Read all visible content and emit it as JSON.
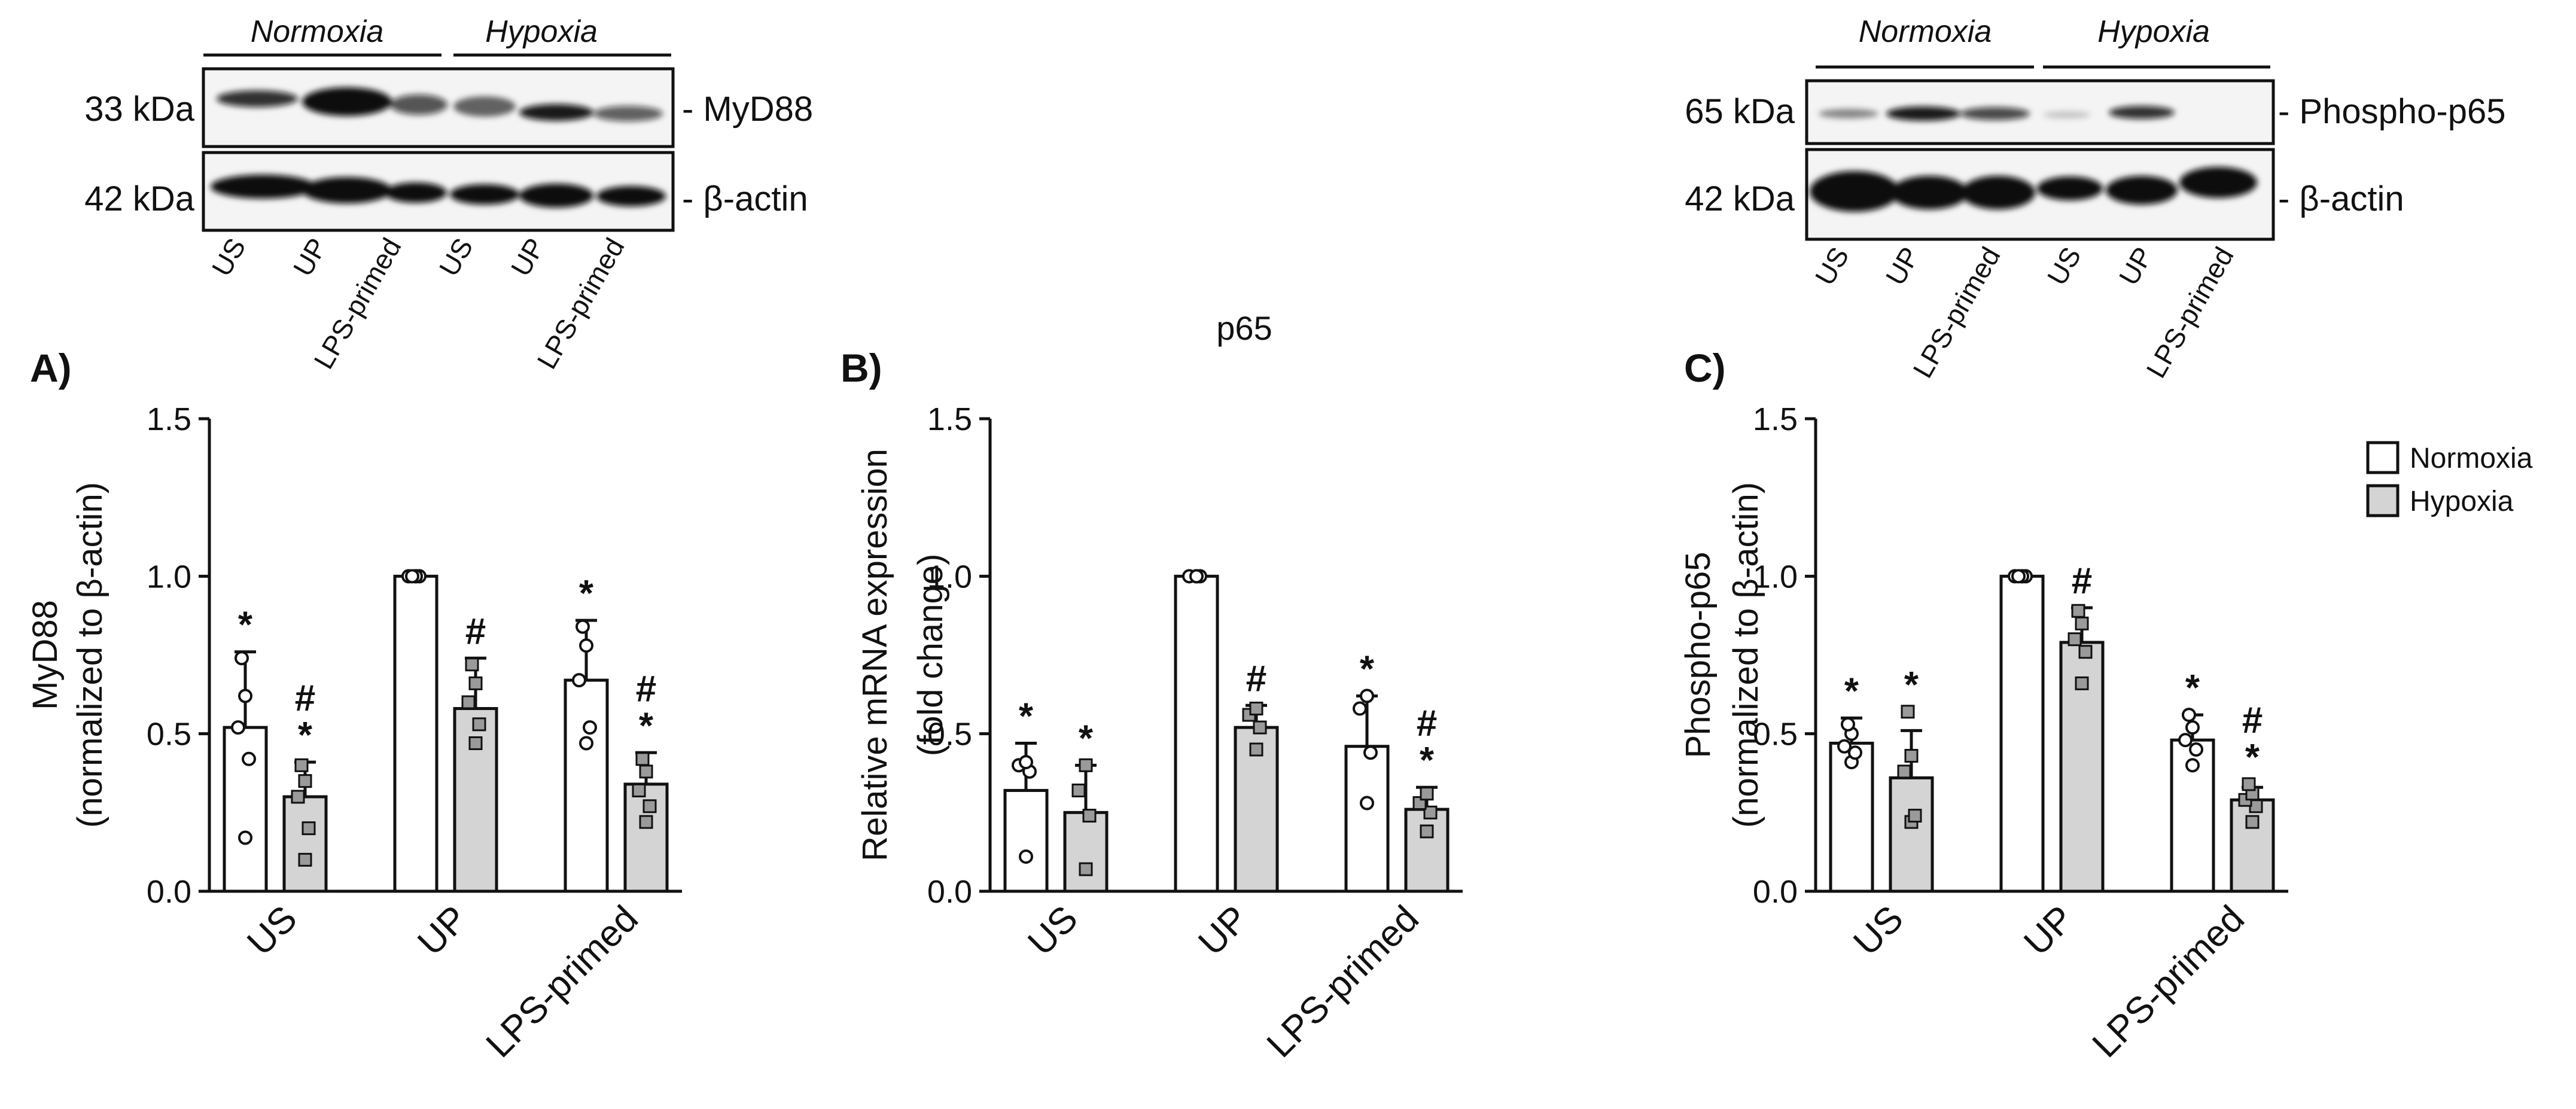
{
  "colors": {
    "normoxia_bar": "#ffffff",
    "hypoxia_bar": "#d4d4d4",
    "axis": "#111111",
    "band": "#0a0a0a"
  },
  "blots": [
    {
      "conditions": [
        "Normoxia",
        "Hypoxia"
      ],
      "lanes": [
        "US",
        "UP",
        "LPS-primed",
        "US",
        "UP",
        "LPS-primed"
      ],
      "rows": [
        {
          "kda": "33 kDa",
          "protein": "- MyD88"
        },
        {
          "kda": "42 kDa",
          "protein": "- β-actin"
        }
      ]
    },
    {
      "conditions": [
        "Normoxia",
        "Hypoxia"
      ],
      "lanes": [
        "US",
        "UP",
        "LPS-primed",
        "US",
        "UP",
        "LPS-primed"
      ],
      "rows": [
        {
          "kda": "65 kDa",
          "protein": "- Phospho-p65"
        },
        {
          "kda": "42 kDa",
          "protein": "- β-actin"
        }
      ]
    }
  ],
  "legend": {
    "items": [
      "Normoxia",
      "Hypoxia"
    ]
  },
  "chart_data": [
    {
      "panel": "A)",
      "type": "bar",
      "title": "",
      "ylabel_lines": [
        "MyD88",
        "(normalized to β-actin)"
      ],
      "categories": [
        "US",
        "UP",
        "LPS-primed"
      ],
      "ylim": [
        0,
        1.5
      ],
      "yticks": [
        "0.0",
        "0.5",
        "1.0",
        "1.5"
      ],
      "series": [
        {
          "name": "Normoxia",
          "values": [
            0.52,
            1.0,
            0.67
          ],
          "errors": [
            0.24,
            0.0,
            0.19
          ],
          "points": [
            [
              0.17,
              0.42,
              0.52,
              0.62,
              0.74
            ],
            [
              1.0,
              1.0,
              1.0,
              1.0,
              1.0
            ],
            [
              0.47,
              0.52,
              0.67,
              0.78,
              0.84
            ]
          ],
          "sig": [
            "*",
            "",
            "*"
          ]
        },
        {
          "name": "Hypoxia",
          "values": [
            0.3,
            0.58,
            0.34
          ],
          "errors": [
            0.11,
            0.16,
            0.1
          ],
          "points": [
            [
              0.1,
              0.2,
              0.3,
              0.35,
              0.4
            ],
            [
              0.47,
              0.53,
              0.6,
              0.66,
              0.72
            ],
            [
              0.22,
              0.27,
              0.32,
              0.38,
              0.42
            ]
          ],
          "sig": [
            "#\n*",
            "#",
            "#\n*"
          ]
        }
      ]
    },
    {
      "panel": "B)",
      "type": "bar",
      "title": "p65",
      "ylabel_lines": [
        "Relative mRNA expression",
        "(fold change)"
      ],
      "categories": [
        "US",
        "UP",
        "LPS-primed"
      ],
      "ylim": [
        0,
        1.5
      ],
      "yticks": [
        "0.0",
        "0.5",
        "1.0",
        "1.5"
      ],
      "series": [
        {
          "name": "Normoxia",
          "values": [
            0.32,
            1.0,
            0.46
          ],
          "errors": [
            0.15,
            0.0,
            0.16
          ],
          "points": [
            [
              0.11,
              0.38,
              0.4,
              0.41
            ],
            [
              1.0,
              1.0,
              1.0,
              1.0
            ],
            [
              0.28,
              0.44,
              0.58,
              0.62
            ]
          ],
          "sig": [
            "*",
            "",
            "*"
          ]
        },
        {
          "name": "Hypoxia",
          "values": [
            0.25,
            0.52,
            0.26
          ],
          "errors": [
            0.15,
            0.07,
            0.07
          ],
          "points": [
            [
              0.07,
              0.24,
              0.32,
              0.4
            ],
            [
              0.45,
              0.52,
              0.56,
              0.58
            ],
            [
              0.19,
              0.25,
              0.28,
              0.31
            ]
          ],
          "sig": [
            "*",
            "#",
            "#\n*"
          ]
        }
      ]
    },
    {
      "panel": "C)",
      "type": "bar",
      "title": "",
      "ylabel_lines": [
        "Phospho-p65",
        "(normalized to β-actin)"
      ],
      "categories": [
        "US",
        "UP",
        "LPS-primed"
      ],
      "ylim": [
        0,
        1.5
      ],
      "yticks": [
        "0.0",
        "0.5",
        "1.0",
        "1.5"
      ],
      "series": [
        {
          "name": "Normoxia",
          "values": [
            0.47,
            1.0,
            0.48
          ],
          "errors": [
            0.08,
            0.0,
            0.08
          ],
          "points": [
            [
              0.41,
              0.44,
              0.46,
              0.5,
              0.53
            ],
            [
              1.0,
              1.0,
              1.0,
              1.0,
              1.0
            ],
            [
              0.4,
              0.45,
              0.48,
              0.52,
              0.56
            ]
          ],
          "sig": [
            "*",
            "",
            "*"
          ]
        },
        {
          "name": "Hypoxia",
          "values": [
            0.36,
            0.79,
            0.29
          ],
          "errors": [
            0.15,
            0.11,
            0.04
          ],
          "points": [
            [
              0.22,
              0.24,
              0.38,
              0.43,
              0.57
            ],
            [
              0.66,
              0.76,
              0.8,
              0.85,
              0.89
            ],
            [
              0.22,
              0.27,
              0.29,
              0.31,
              0.34
            ]
          ],
          "sig": [
            "*",
            "#",
            "#\n*"
          ]
        }
      ]
    }
  ]
}
